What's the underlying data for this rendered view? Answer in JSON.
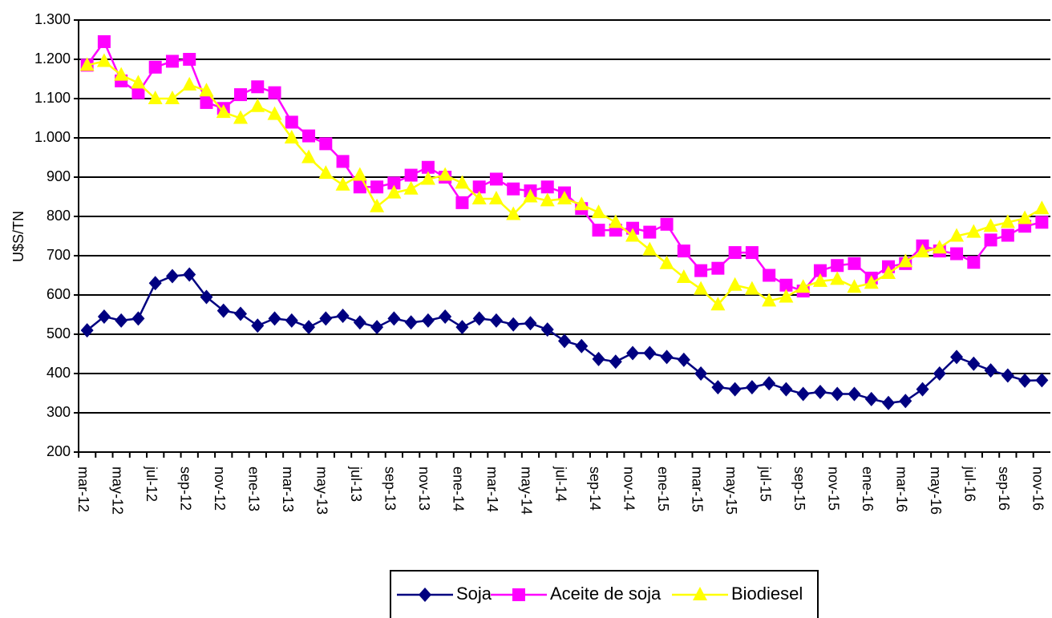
{
  "chart_data": {
    "type": "line",
    "y_label": "U$S/TN",
    "categories": [
      "mar-12",
      null,
      "may-12",
      null,
      "jul-12",
      null,
      "sep-12",
      null,
      "nov-12",
      null,
      "ene-13",
      null,
      "mar-13",
      null,
      "may-13",
      null,
      "jul-13",
      null,
      "sep-13",
      null,
      "nov-13",
      null,
      "ene-14",
      null,
      "mar-14",
      null,
      "may-14",
      null,
      "jul-14",
      null,
      "sep-14",
      null,
      "nov-14",
      null,
      "ene-15",
      null,
      "mar-15",
      null,
      "may-15",
      null,
      "jul-15",
      null,
      "sep-15",
      null,
      "nov-15",
      null,
      "ene-16",
      null,
      "mar-16",
      null,
      "may-16",
      null,
      "jul-16",
      null,
      "sep-16",
      null,
      "nov-16"
    ],
    "ylim": [
      200,
      1300
    ],
    "yticks": [
      200,
      300,
      400,
      500,
      600,
      700,
      800,
      900,
      {
        "value": 1000,
        "label": "1.000"
      },
      {
        "value": 1100,
        "label": "1.100"
      },
      {
        "value": 1200,
        "label": "1.200"
      },
      {
        "value": 1300,
        "label": "1.300"
      }
    ],
    "grid": true,
    "legend": "bottom",
    "series": [
      {
        "name": "Soja",
        "color": "#000080",
        "marker": "diamond",
        "values": [
          510,
          545,
          535,
          540,
          630,
          648,
          652,
          595,
          560,
          552,
          522,
          540,
          535,
          518,
          540,
          547,
          530,
          518,
          540,
          530,
          535,
          545,
          518,
          540,
          535,
          525,
          528,
          512,
          483,
          470,
          437,
          430,
          452,
          452,
          442,
          435,
          400,
          365,
          360,
          365,
          375,
          360,
          348,
          353,
          348,
          348,
          335,
          325,
          330,
          360,
          400,
          442,
          425,
          408,
          395,
          382,
          383
        ]
      },
      {
        "name": "Aceite de soja",
        "color": "#ff00ff",
        "marker": "square",
        "values": [
          1185,
          1245,
          1145,
          1115,
          1180,
          1195,
          1200,
          1090,
          1075,
          1110,
          1130,
          1115,
          1040,
          1005,
          985,
          940,
          875,
          875,
          885,
          905,
          925,
          900,
          835,
          875,
          895,
          870,
          865,
          875,
          860,
          820,
          765,
          765,
          770,
          760,
          780,
          712,
          662,
          668,
          708,
          708,
          650,
          625,
          610,
          662,
          675,
          680,
          643,
          672,
          680,
          725,
          712,
          705,
          683,
          740,
          752,
          775,
          785
        ]
      },
      {
        "name": "Biodiesel",
        "color": "#ffff00",
        "marker": "triangle",
        "values": [
          1185,
          1195,
          1160,
          1140,
          1100,
          1100,
          1135,
          1120,
          1065,
          1050,
          1080,
          1060,
          1000,
          950,
          910,
          880,
          905,
          825,
          860,
          870,
          895,
          905,
          885,
          845,
          845,
          805,
          850,
          840,
          845,
          830,
          810,
          785,
          750,
          715,
          680,
          645,
          615,
          575,
          625,
          615,
          585,
          595,
          620,
          635,
          640,
          620,
          630,
          655,
          685,
          710,
          720,
          750,
          760,
          775,
          785,
          795,
          820
        ]
      }
    ]
  }
}
